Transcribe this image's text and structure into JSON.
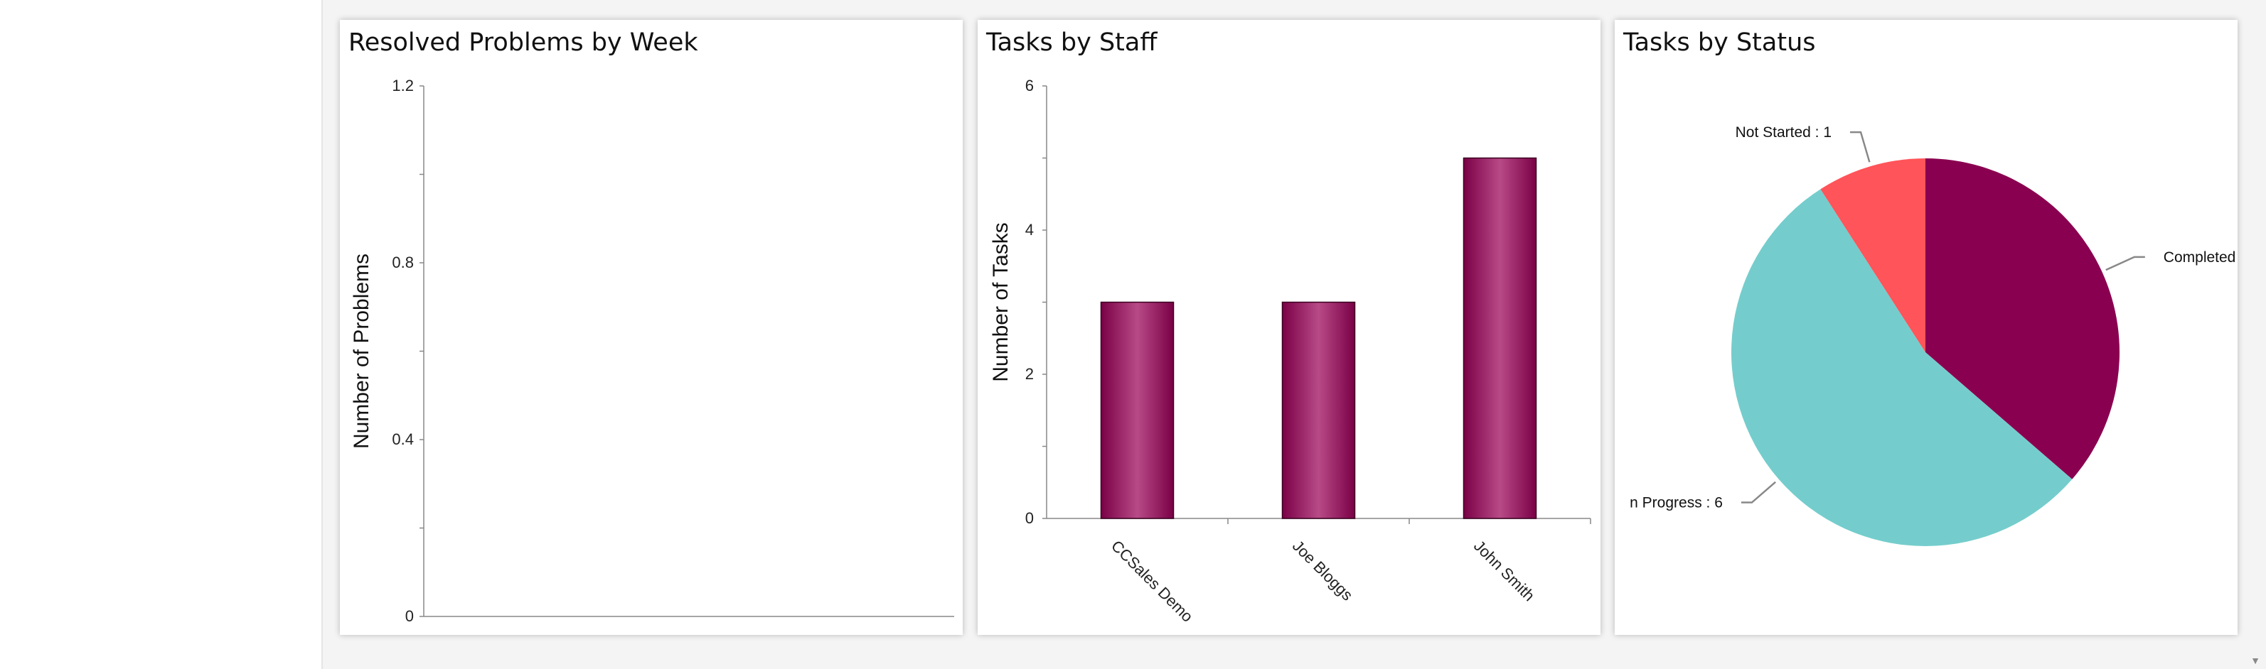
{
  "panels": [
    {
      "title": "Resolved Problems by Week",
      "chart_data": {
        "type": "line",
        "title": "Resolved Problems by Week",
        "xlabel": "",
        "ylabel": "Number of Problems",
        "ylim": [
          0,
          1.2
        ],
        "yticks": [
          "0",
          "0.4",
          "0.8",
          "1.2"
        ],
        "ytick_values": [
          0,
          0.4,
          0.8,
          1.2
        ],
        "series": []
      }
    },
    {
      "title": "Tasks by Staff",
      "chart_data": {
        "type": "bar",
        "title": "Tasks by Staff",
        "xlabel": "",
        "ylabel": "Number of Tasks",
        "ylim": [
          0,
          6
        ],
        "yticks": [
          "0",
          "2",
          "4",
          "6"
        ],
        "ytick_values": [
          0,
          2,
          4,
          6
        ],
        "categories": [
          "CCSales Demo",
          "Joe Bloggs",
          "John Smith"
        ],
        "values": [
          3,
          3,
          5
        ],
        "color": "#8a0050"
      }
    },
    {
      "title": "Tasks by Status",
      "chart_data": {
        "type": "pie",
        "title": "Tasks by Status",
        "slices": [
          {
            "label": "Completed",
            "label_text": "Completed",
            "value": 4,
            "color": "#8a0050"
          },
          {
            "label": "In Progress",
            "label_text": "n Progress : 6",
            "value": 6,
            "color": "#74cdcc"
          },
          {
            "label": "Not Started",
            "label_text": "Not Started : 1",
            "value": 1,
            "color": "#ff5459"
          }
        ]
      }
    }
  ]
}
